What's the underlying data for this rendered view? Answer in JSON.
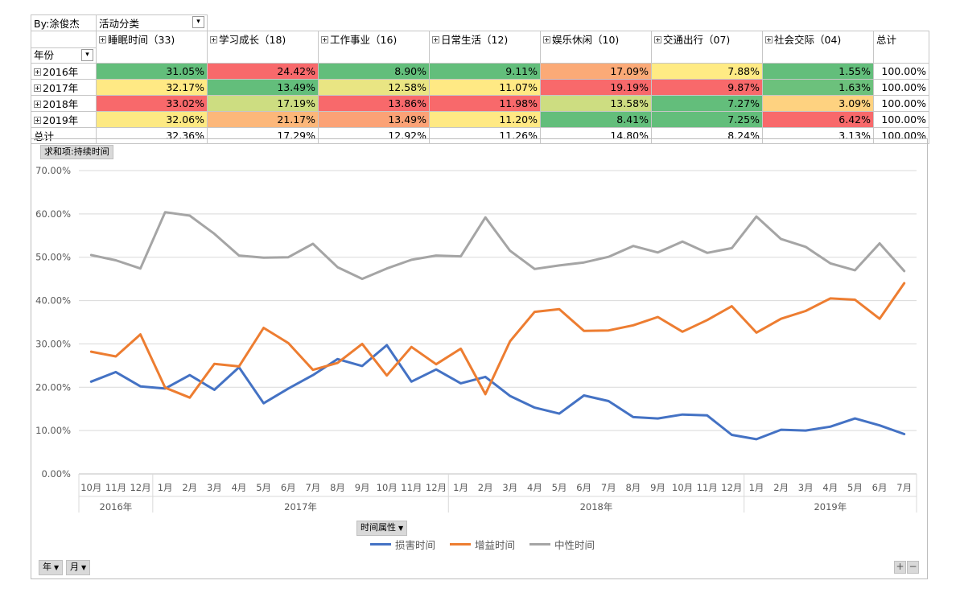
{
  "pivot": {
    "by_label": "By:涂俊杰",
    "col_field": "活动分类",
    "row_field": "年份",
    "total_label": "总计",
    "columns": [
      "睡眠时间（33)",
      "学习成长（18)",
      "工作事业（16)",
      "日常生活（12)",
      "娱乐休闲（10)",
      "交通出行（07)",
      "社会交际（04)"
    ],
    "rows": [
      {
        "label": "2016年",
        "cells": [
          "31.05%",
          "24.42%",
          "8.90%",
          "9.11%",
          "17.09%",
          "7.88%",
          "1.55%"
        ],
        "total": "100.00%",
        "colors": [
          "#63be7b",
          "#f8696b",
          "#63be7b",
          "#63be7b",
          "#fbaa77",
          "#ffeb84",
          "#63be7b"
        ]
      },
      {
        "label": "2017年",
        "cells": [
          "32.17%",
          "13.49%",
          "12.58%",
          "11.07%",
          "19.19%",
          "9.87%",
          "1.63%"
        ],
        "total": "100.00%",
        "colors": [
          "#ffe984",
          "#63be7b",
          "#e9e583",
          "#ffe984",
          "#f8696b",
          "#f8696b",
          "#6cc17c"
        ]
      },
      {
        "label": "2018年",
        "cells": [
          "33.02%",
          "17.19%",
          "13.86%",
          "11.98%",
          "13.58%",
          "7.27%",
          "3.09%"
        ],
        "total": "100.00%",
        "colors": [
          "#f8696b",
          "#cddd81",
          "#f8696b",
          "#f8696b",
          "#cddd81",
          "#63be7b",
          "#fed280"
        ]
      },
      {
        "label": "2019年",
        "cells": [
          "32.06%",
          "21.17%",
          "13.49%",
          "11.20%",
          "8.41%",
          "7.25%",
          "6.42%"
        ],
        "total": "100.00%",
        "colors": [
          "#fde983",
          "#fcb77a",
          "#fba276",
          "#ffe984",
          "#63be7b",
          "#63be7b",
          "#f8696b"
        ]
      }
    ],
    "grand_total": {
      "label": "总计",
      "cells": [
        "32.36%",
        "17.29%",
        "12.92%",
        "11.26%",
        "14.80%",
        "8.24%",
        "3.13%"
      ],
      "total": "100.00%"
    }
  },
  "chart_ui": {
    "value_field_button": "求和项:持续时间",
    "axis_field_button": "时间属性",
    "row_buttons": [
      "年",
      "月"
    ],
    "zoom_in": "+",
    "zoom_out": "−"
  },
  "chart_data": {
    "type": "line",
    "ylim": [
      0,
      0.7
    ],
    "yticks": [
      "0.00%",
      "10.00%",
      "20.00%",
      "30.00%",
      "40.00%",
      "50.00%",
      "60.00%",
      "70.00%"
    ],
    "x": [
      "10月",
      "11月",
      "12月",
      "1月",
      "2月",
      "3月",
      "4月",
      "5月",
      "6月",
      "7月",
      "8月",
      "9月",
      "10月",
      "11月",
      "12月",
      "1月",
      "2月",
      "3月",
      "4月",
      "5月",
      "6月",
      "7月",
      "8月",
      "9月",
      "10月",
      "11月",
      "12月",
      "1月",
      "2月",
      "3月",
      "4月",
      "5月",
      "6月",
      "7月"
    ],
    "year_groups": [
      {
        "label": "2016年",
        "count": 3
      },
      {
        "label": "2017年",
        "count": 12
      },
      {
        "label": "2018年",
        "count": 12
      },
      {
        "label": "2019年",
        "count": 7
      }
    ],
    "series": [
      {
        "name": "损害时间",
        "color": "#4472c4",
        "values": [
          0.213,
          0.235,
          0.202,
          0.197,
          0.228,
          0.194,
          0.246,
          0.163,
          0.197,
          0.228,
          0.265,
          0.249,
          0.297,
          0.213,
          0.241,
          0.209,
          0.224,
          0.18,
          0.153,
          0.139,
          0.181,
          0.168,
          0.131,
          0.128,
          0.137,
          0.135,
          0.09,
          0.08,
          0.102,
          0.1,
          0.109,
          0.128,
          0.112,
          0.092
        ]
      },
      {
        "name": "增益时间",
        "color": "#ed7d31",
        "values": [
          0.282,
          0.271,
          0.322,
          0.199,
          0.176,
          0.254,
          0.248,
          0.337,
          0.302,
          0.24,
          0.256,
          0.3,
          0.227,
          0.293,
          0.253,
          0.289,
          0.184,
          0.306,
          0.374,
          0.38,
          0.33,
          0.331,
          0.343,
          0.362,
          0.328,
          0.355,
          0.387,
          0.326,
          0.358,
          0.376,
          0.405,
          0.402,
          0.358,
          0.44
        ]
      },
      {
        "name": "中性时间",
        "color": "#a5a5a5",
        "values": [
          0.505,
          0.493,
          0.474,
          0.604,
          0.596,
          0.554,
          0.504,
          0.499,
          0.5,
          0.531,
          0.477,
          0.45,
          0.474,
          0.494,
          0.504,
          0.502,
          0.592,
          0.515,
          0.473,
          0.481,
          0.488,
          0.501,
          0.526,
          0.511,
          0.536,
          0.51,
          0.521,
          0.594,
          0.542,
          0.524,
          0.486,
          0.47,
          0.532,
          0.468
        ]
      }
    ]
  }
}
